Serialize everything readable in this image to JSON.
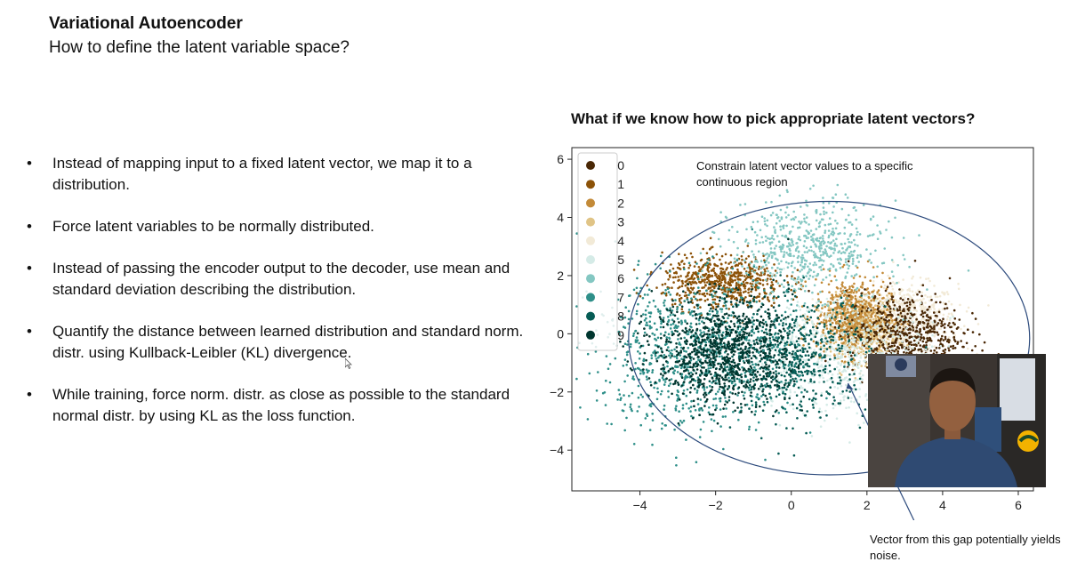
{
  "slide": {
    "title": "Variational Autoencoder",
    "subtitle": "How to define the latent variable space?",
    "bullets": [
      "Instead of mapping input to a fixed latent vector, we map it to a distribution.",
      "Force latent variables to be normally distributed.",
      "Instead of passing the encoder output to the decoder, use mean and standard deviation describing the distribution.",
      "Quantify the distance between learned distribution and standard norm. distr. using Kullback-Leibler (KL) divergence.",
      "While training, force norm. distr. as close as possible to the standard normal distr. by using KL as the loss function."
    ],
    "bullet_symbol": "•",
    "chart_title": "What if we know how to pick appropriate latent vectors?",
    "callout_top": "Constrain latent vector values to a specific continuous region",
    "callout_bottom": "Vector from this gap potentially yields noise."
  },
  "colors": {
    "ellipse": "#2c4a7c",
    "legend": [
      "#4a2806",
      "#8c5208",
      "#c38a38",
      "#e0c486",
      "#f2ead7",
      "#d5ebe7",
      "#84c7c2",
      "#2e8f89",
      "#065c55",
      "#00362f"
    ]
  },
  "chart_data": {
    "type": "scatter",
    "title": "What if we know how to pick appropriate latent vectors?",
    "xlabel": "",
    "ylabel": "",
    "xlim": [
      -5.8,
      6.4
    ],
    "ylim": [
      -5.4,
      6.4
    ],
    "xticks": [
      -4,
      -2,
      0,
      2,
      4,
      6
    ],
    "yticks": [
      -4,
      -2,
      0,
      2,
      4,
      6
    ],
    "xtick_labels": [
      "−4",
      "−2",
      "0",
      "2",
      "4",
      "6"
    ],
    "ytick_labels": [
      "−4",
      "−2",
      "0",
      "2",
      "4",
      "6"
    ],
    "legend_position": "top-left",
    "series": [
      {
        "name": "0",
        "color": "#4a2806",
        "center": [
          3.0,
          0.0
        ],
        "spread": [
          0.75,
          0.7
        ]
      },
      {
        "name": "1",
        "color": "#8c5208",
        "center": [
          -1.8,
          1.8
        ],
        "spread": [
          0.8,
          0.45
        ]
      },
      {
        "name": "2",
        "color": "#c38a38",
        "center": [
          1.6,
          0.6
        ],
        "spread": [
          0.5,
          0.65
        ]
      },
      {
        "name": "3",
        "color": "#e0c486",
        "center": [
          1.9,
          0.2
        ],
        "spread": [
          0.45,
          0.55
        ]
      },
      {
        "name": "4",
        "color": "#f2ead7",
        "center": [
          3.0,
          0.5
        ],
        "spread": [
          0.7,
          0.6
        ]
      },
      {
        "name": "5",
        "color": "#d5ebe7",
        "center": [
          1.3,
          -0.8
        ],
        "spread": [
          1.2,
          1.0
        ]
      },
      {
        "name": "6",
        "color": "#84c7c2",
        "center": [
          0.4,
          2.9
        ],
        "spread": [
          1.0,
          0.8
        ]
      },
      {
        "name": "7",
        "color": "#2e8f89",
        "center": [
          -2.6,
          -0.7
        ],
        "spread": [
          1.3,
          1.3
        ]
      },
      {
        "name": "8",
        "color": "#065c55",
        "center": [
          0.0,
          -0.8
        ],
        "spread": [
          1.0,
          1.0
        ]
      },
      {
        "name": "9",
        "color": "#00362f",
        "center": [
          -1.8,
          -0.6
        ],
        "spread": [
          0.9,
          0.9
        ]
      }
    ],
    "ellipse": {
      "center": [
        1.0,
        -0.15
      ],
      "rx": 5.3,
      "ry": 4.7
    },
    "gap_point": [
      1.5,
      -1.7
    ]
  }
}
